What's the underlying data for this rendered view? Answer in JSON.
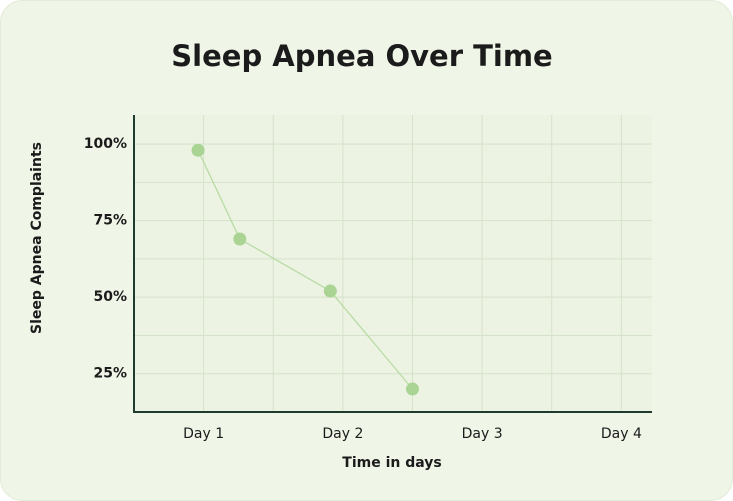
{
  "chart_data": {
    "type": "line",
    "title": "Sleep Apnea Over Time",
    "x_label": "Time in days",
    "y_label": "Sleep Apnea Complaints",
    "x": [
      0.96,
      1.26,
      1.91,
      2.5
    ],
    "series": [
      {
        "name": "Sleep Apnea Complaints",
        "color": "#a9d493",
        "line_color": "#b9dca6",
        "values": [
          98,
          69,
          52,
          20
        ]
      }
    ],
    "xlim": [
      0.5,
      4.22
    ],
    "xticks": [
      {
        "value": 1,
        "label": "Day 1"
      },
      {
        "value": 2,
        "label": "Day 2"
      },
      {
        "value": 3,
        "label": "Day 3"
      },
      {
        "value": 4,
        "label": "Day 4"
      }
    ],
    "x_minor_ticks": [
      1.5,
      2.5,
      3.5
    ],
    "ylim": [
      12.5,
      109.5
    ],
    "yticks": [
      {
        "value": 25,
        "label": "25%"
      },
      {
        "value": 50,
        "label": "50%"
      },
      {
        "value": 75,
        "label": "75%"
      },
      {
        "value": 100,
        "label": "100%"
      }
    ],
    "y_minor_ticks": [
      37.5,
      62.5,
      87.5
    ],
    "grid": true
  }
}
